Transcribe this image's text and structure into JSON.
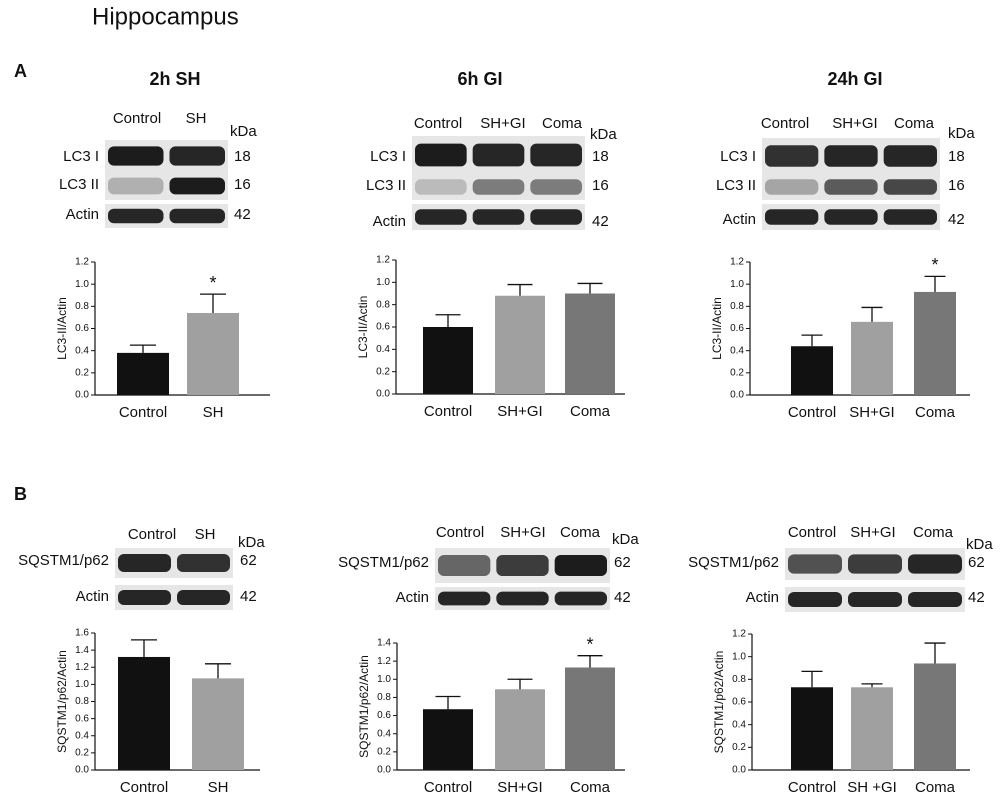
{
  "title": "Hippocampus",
  "panels": [
    "A",
    "B"
  ],
  "blots": [
    {
      "title": "2h SH",
      "lanes": [
        "Control",
        "SH"
      ],
      "unit": "kDa",
      "rows": [
        {
          "label": "LC3 I",
          "size": "18"
        },
        {
          "label": "LC3 II",
          "size": "16"
        },
        {
          "label": "Actin",
          "size": "42"
        }
      ]
    },
    {
      "title": "6h GI",
      "lanes": [
        "Control",
        "SH+GI",
        "Coma"
      ],
      "unit": "kDa",
      "rows": [
        {
          "label": "LC3 I",
          "size": "18"
        },
        {
          "label": "LC3 II",
          "size": "16"
        },
        {
          "label": "Actin",
          "size": "42"
        }
      ]
    },
    {
      "title": "24h GI",
      "lanes": [
        "Control",
        "SH+GI",
        "Coma"
      ],
      "unit": "kDa",
      "rows": [
        {
          "label": "LC3 I",
          "size": "18"
        },
        {
          "label": "LC3 II",
          "size": "16"
        },
        {
          "label": "Actin",
          "size": "42"
        }
      ]
    },
    {
      "lanes": [
        "Control",
        "SH"
      ],
      "unit": "kDa",
      "rows": [
        {
          "label": "SQSTM1/p62",
          "size": "62"
        },
        {
          "label": "Actin",
          "size": "42"
        }
      ]
    },
    {
      "lanes": [
        "Control",
        "SH+GI",
        "Coma"
      ],
      "unit": "kDa",
      "rows": [
        {
          "label": "SQSTM1/p62",
          "size": "62"
        },
        {
          "label": "Actin",
          "size": "42"
        }
      ]
    },
    {
      "lanes": [
        "Control",
        "SH+GI",
        "Coma"
      ],
      "unit": "kDa",
      "rows": [
        {
          "label": "SQSTM1/p62",
          "size": "62"
        },
        {
          "label": "Actin",
          "size": "42"
        }
      ]
    }
  ],
  "chart_data": [
    {
      "type": "bar",
      "y_label": "LC3-II/Actin",
      "categories": [
        "Control",
        "SH"
      ],
      "values": [
        0.38,
        0.74
      ],
      "errors": [
        0.07,
        0.17
      ],
      "colors": [
        "#111111",
        "#a0a0a0"
      ],
      "ylim": [
        0,
        1.2
      ],
      "yticks": [
        {
          "value": 0,
          "label": "0.0"
        },
        0.2,
        0.4,
        0.6,
        0.8,
        {
          "value": 1,
          "label": "1.0"
        },
        1.2
      ],
      "annotations": [
        {
          "text": "*",
          "category": "SH"
        }
      ]
    },
    {
      "type": "bar",
      "y_label": "LC3-II/Actin",
      "categories": [
        "Control",
        "SH+GI",
        "Coma"
      ],
      "values": [
        0.6,
        0.88,
        0.9
      ],
      "errors": [
        0.11,
        0.1,
        0.09
      ],
      "colors": [
        "#111111",
        "#a0a0a0",
        "#777777"
      ],
      "ylim": [
        0,
        1.2
      ],
      "yticks": [
        {
          "value": 0,
          "label": "0.0"
        },
        0.2,
        0.4,
        0.6,
        0.8,
        {
          "value": 1,
          "label": "1.0"
        },
        1.2
      ]
    },
    {
      "type": "bar",
      "y_label": "LC3-II/Actin",
      "categories": [
        "Control",
        "SH+GI",
        "Coma"
      ],
      "values": [
        0.44,
        0.66,
        0.93
      ],
      "errors": [
        0.1,
        0.13,
        0.14
      ],
      "colors": [
        "#111111",
        "#a0a0a0",
        "#777777"
      ],
      "ylim": [
        0,
        1.2
      ],
      "yticks": [
        {
          "value": 0,
          "label": "0.0"
        },
        0.2,
        0.4,
        0.6,
        0.8,
        {
          "value": 1,
          "label": "1.0"
        },
        1.2
      ],
      "annotations": [
        {
          "text": "*",
          "category": "Coma"
        }
      ]
    },
    {
      "type": "bar",
      "y_label": "SQSTM1/p62/Actin",
      "categories": [
        "Control",
        "SH"
      ],
      "values": [
        1.32,
        1.07
      ],
      "errors": [
        0.2,
        0.17
      ],
      "colors": [
        "#111111",
        "#a0a0a0"
      ],
      "ylim": [
        0,
        1.6
      ],
      "yticks": [
        {
          "value": 0,
          "label": "0.0"
        },
        0.2,
        0.4,
        0.6,
        0.8,
        {
          "value": 1,
          "label": "1.0"
        },
        1.2,
        1.4,
        1.6
      ]
    },
    {
      "type": "bar",
      "y_label": "SQSTM1/p62/Actin",
      "categories": [
        "Control",
        "SH+GI",
        "Coma"
      ],
      "values": [
        0.67,
        0.89,
        1.13
      ],
      "errors": [
        0.14,
        0.11,
        0.13
      ],
      "colors": [
        "#111111",
        "#a0a0a0",
        "#777777"
      ],
      "ylim": [
        0,
        1.4
      ],
      "yticks": [
        {
          "value": 0,
          "label": "0.0"
        },
        0.2,
        0.4,
        0.6,
        0.8,
        {
          "value": 1,
          "label": "1.0"
        },
        1.2,
        1.4
      ],
      "annotations": [
        {
          "text": "*",
          "category": "Coma"
        }
      ]
    },
    {
      "type": "bar",
      "y_label": "SQSTM1/p62/Actin",
      "categories": [
        "Control",
        "SH +GI",
        "Coma"
      ],
      "values": [
        0.73,
        0.73,
        0.94
      ],
      "errors": [
        0.14,
        0.03,
        0.18
      ],
      "colors": [
        "#111111",
        "#a0a0a0",
        "#777777"
      ],
      "ylim": [
        0,
        1.2
      ],
      "yticks": [
        {
          "value": 0,
          "label": "0.0"
        },
        0.2,
        0.4,
        0.6,
        0.8,
        {
          "value": 1,
          "label": "1.0"
        },
        1.2
      ]
    }
  ]
}
